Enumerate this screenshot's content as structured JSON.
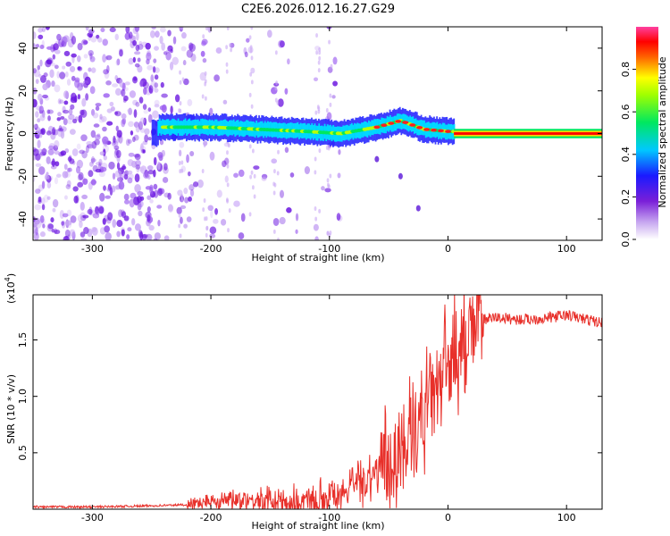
{
  "figure_title": "C2E6.2026.012.16.27.G29",
  "chart_data": [
    {
      "type": "heatmap",
      "xlabel": "Height of straight line (km)",
      "ylabel": "Frequency (Hz)",
      "xlim": [
        -350,
        130
      ],
      "ylim": [
        -50,
        50
      ],
      "xticks": [
        -300,
        -200,
        -100,
        0,
        100
      ],
      "yticks": [
        -40,
        -20,
        0,
        20,
        40
      ],
      "colorbar": {
        "label": "Normalized spectral amplitude",
        "range": [
          0,
          1
        ],
        "ticks": [
          "0.0",
          "0.2",
          "0.4",
          "0.6",
          "0.8"
        ],
        "colormap": "rainbow (white-violet-blue-cyan-green-yellow-red-magenta)"
      },
      "ridge": [
        {
          "x": -245,
          "freq": 3
        },
        {
          "x": -200,
          "freq": 3
        },
        {
          "x": -160,
          "freq": 2
        },
        {
          "x": -120,
          "freq": 1
        },
        {
          "x": -90,
          "freq": 0
        },
        {
          "x": -60,
          "freq": 3
        },
        {
          "x": -40,
          "freq": 6
        },
        {
          "x": -20,
          "freq": 2
        },
        {
          "x": 0,
          "freq": 1
        },
        {
          "x": 130,
          "freq": 0
        }
      ],
      "branch": [
        {
          "x": -60,
          "freq": -12
        },
        {
          "x": -40,
          "freq": -20
        },
        {
          "x": -25,
          "freq": -35
        }
      ]
    },
    {
      "type": "line",
      "xlabel": "Height of straight line (km)",
      "ylabel": "SNR (10 * v/v)",
      "scale_label": "(x10",
      "scale_exp": "4",
      "xlim": [
        -350,
        130
      ],
      "ylim": [
        0,
        1.9
      ],
      "xticks": [
        -300,
        -200,
        -100,
        0,
        100
      ],
      "yticks": [
        0.5,
        1.0,
        1.5
      ],
      "color": "#e8302a",
      "series": [
        {
          "x": [
            -350,
            -300,
            -250,
            -220,
            -200,
            -180,
            -160,
            -140,
            -120,
            -100,
            -80,
            -60,
            -40,
            -30,
            -20,
            -10,
            0,
            10,
            20,
            30,
            40,
            60,
            80,
            100,
            130
          ],
          "y": [
            0.02,
            0.02,
            0.03,
            0.04,
            0.07,
            0.1,
            0.08,
            0.05,
            0.06,
            0.12,
            0.2,
            0.35,
            0.5,
            0.65,
            0.85,
            1.1,
            1.25,
            1.45,
            1.6,
            1.68,
            1.7,
            1.68,
            1.69,
            1.72,
            1.65
          ]
        }
      ]
    }
  ]
}
